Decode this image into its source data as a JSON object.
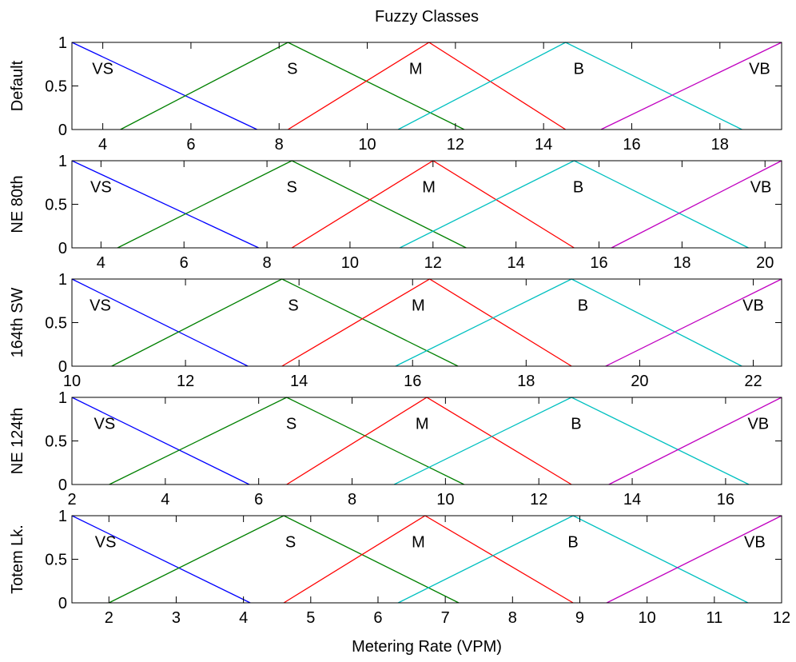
{
  "chart_data": {
    "type": "line",
    "title": "Fuzzy Classes",
    "xlabel": "Metering Rate (VPM)",
    "series_colors": {
      "VS": "#0000ff",
      "S": "#008000",
      "M": "#ff0000",
      "B": "#00c0c0",
      "VB": "#c000c0"
    },
    "panels": [
      {
        "ylabel": "Default",
        "xlim": [
          3.3,
          19.4
        ],
        "ylim": [
          0,
          1
        ],
        "xticks": [
          "4",
          "6",
          "8",
          "10",
          "12",
          "14",
          "16",
          "18"
        ],
        "xtick_values": [
          4,
          6,
          8,
          10,
          12,
          14,
          16,
          18
        ],
        "yticks": [
          "0",
          "0.5",
          "1"
        ],
        "series": [
          {
            "name": "VS",
            "points": [
              [
                3.3,
                1
              ],
              [
                7.5,
                0
              ]
            ]
          },
          {
            "name": "S",
            "points": [
              [
                4.4,
                0
              ],
              [
                8.2,
                1
              ],
              [
                12.2,
                0
              ]
            ]
          },
          {
            "name": "M",
            "points": [
              [
                8.2,
                0
              ],
              [
                11.4,
                1
              ],
              [
                14.5,
                0
              ]
            ]
          },
          {
            "name": "B",
            "points": [
              [
                10.7,
                0
              ],
              [
                14.5,
                1
              ],
              [
                18.5,
                0
              ]
            ]
          },
          {
            "name": "VB",
            "points": [
              [
                15.3,
                0
              ],
              [
                19.4,
                1
              ]
            ]
          }
        ],
        "class_labels": [
          [
            "VS",
            4.0,
            0.7
          ],
          [
            "S",
            8.3,
            0.7
          ],
          [
            "M",
            11.1,
            0.7
          ],
          [
            "B",
            14.8,
            0.7
          ],
          [
            "VB",
            18.9,
            0.7
          ]
        ]
      },
      {
        "ylabel": "NE 80th",
        "xlim": [
          3.3,
          20.4
        ],
        "ylim": [
          0,
          1
        ],
        "xticks": [
          "4",
          "6",
          "8",
          "10",
          "12",
          "14",
          "16",
          "18",
          "20"
        ],
        "xtick_values": [
          4,
          6,
          8,
          10,
          12,
          14,
          16,
          18,
          20
        ],
        "yticks": [
          "0",
          "0.5",
          "1"
        ],
        "series": [
          {
            "name": "VS",
            "points": [
              [
                3.3,
                1
              ],
              [
                7.8,
                0
              ]
            ]
          },
          {
            "name": "S",
            "points": [
              [
                4.4,
                0
              ],
              [
                8.6,
                1
              ],
              [
                12.8,
                0
              ]
            ]
          },
          {
            "name": "M",
            "points": [
              [
                8.6,
                0
              ],
              [
                12.0,
                1
              ],
              [
                15.4,
                0
              ]
            ]
          },
          {
            "name": "B",
            "points": [
              [
                11.2,
                0
              ],
              [
                15.4,
                1
              ],
              [
                19.6,
                0
              ]
            ]
          },
          {
            "name": "VB",
            "points": [
              [
                16.3,
                0
              ],
              [
                20.4,
                1
              ]
            ]
          }
        ],
        "class_labels": [
          [
            "VS",
            4.0,
            0.7
          ],
          [
            "S",
            8.6,
            0.7
          ],
          [
            "M",
            11.9,
            0.7
          ],
          [
            "B",
            15.5,
            0.7
          ],
          [
            "VB",
            19.9,
            0.7
          ]
        ]
      },
      {
        "ylabel": "164th SW",
        "xlim": [
          10,
          22.5
        ],
        "ylim": [
          0,
          1
        ],
        "xticks": [
          "10",
          "12",
          "14",
          "16",
          "18",
          "20",
          "22"
        ],
        "xtick_values": [
          10,
          12,
          14,
          16,
          18,
          20,
          22
        ],
        "yticks": [
          "0",
          "0.5",
          "1"
        ],
        "series": [
          {
            "name": "VS",
            "points": [
              [
                10,
                1
              ],
              [
                13.1,
                0
              ]
            ]
          },
          {
            "name": "S",
            "points": [
              [
                10.7,
                0
              ],
              [
                13.7,
                1
              ],
              [
                16.8,
                0
              ]
            ]
          },
          {
            "name": "M",
            "points": [
              [
                13.7,
                0
              ],
              [
                16.3,
                1
              ],
              [
                18.8,
                0
              ]
            ]
          },
          {
            "name": "B",
            "points": [
              [
                15.7,
                0
              ],
              [
                18.8,
                1
              ],
              [
                21.8,
                0
              ]
            ]
          },
          {
            "name": "VB",
            "points": [
              [
                19.4,
                0
              ],
              [
                22.5,
                1
              ]
            ]
          }
        ],
        "class_labels": [
          [
            "VS",
            10.5,
            0.7
          ],
          [
            "S",
            13.9,
            0.7
          ],
          [
            "M",
            16.1,
            0.7
          ],
          [
            "B",
            19.0,
            0.7
          ],
          [
            "VB",
            22.0,
            0.7
          ]
        ]
      },
      {
        "ylabel": "NE 124th",
        "xlim": [
          2,
          17.2
        ],
        "ylim": [
          0,
          1
        ],
        "xticks": [
          "2",
          "4",
          "6",
          "8",
          "10",
          "12",
          "14",
          "16"
        ],
        "xtick_values": [
          2,
          4,
          6,
          8,
          10,
          12,
          14,
          16
        ],
        "yticks": [
          "0",
          "0.5",
          "1"
        ],
        "series": [
          {
            "name": "VS",
            "points": [
              [
                2,
                1
              ],
              [
                5.8,
                0
              ]
            ]
          },
          {
            "name": "S",
            "points": [
              [
                2.8,
                0
              ],
              [
                6.6,
                1
              ],
              [
                10.4,
                0
              ]
            ]
          },
          {
            "name": "M",
            "points": [
              [
                6.6,
                0
              ],
              [
                9.6,
                1
              ],
              [
                12.7,
                0
              ]
            ]
          },
          {
            "name": "B",
            "points": [
              [
                8.9,
                0
              ],
              [
                12.7,
                1
              ],
              [
                16.5,
                0
              ]
            ]
          },
          {
            "name": "VB",
            "points": [
              [
                13.5,
                0
              ],
              [
                17.2,
                1
              ]
            ]
          }
        ],
        "class_labels": [
          [
            "VS",
            2.7,
            0.7
          ],
          [
            "S",
            6.7,
            0.7
          ],
          [
            "M",
            9.5,
            0.7
          ],
          [
            "B",
            12.8,
            0.7
          ],
          [
            "VB",
            16.7,
            0.7
          ]
        ]
      },
      {
        "ylabel": "Totem Lk.",
        "xlim": [
          1.45,
          12
        ],
        "ylim": [
          0,
          1
        ],
        "xticks": [
          "2",
          "3",
          "4",
          "5",
          "6",
          "7",
          "8",
          "9",
          "10",
          "11",
          "12"
        ],
        "xtick_values": [
          2,
          3,
          4,
          5,
          6,
          7,
          8,
          9,
          10,
          11,
          12
        ],
        "yticks": [
          "0",
          "0.5",
          "1"
        ],
        "series": [
          {
            "name": "VS",
            "points": [
              [
                1.45,
                1
              ],
              [
                4.1,
                0
              ]
            ]
          },
          {
            "name": "S",
            "points": [
              [
                2.0,
                0
              ],
              [
                4.6,
                1
              ],
              [
                7.2,
                0
              ]
            ]
          },
          {
            "name": "M",
            "points": [
              [
                4.6,
                0
              ],
              [
                6.7,
                1
              ],
              [
                8.9,
                0
              ]
            ]
          },
          {
            "name": "B",
            "points": [
              [
                6.3,
                0
              ],
              [
                8.9,
                1
              ],
              [
                11.5,
                0
              ]
            ]
          },
          {
            "name": "VB",
            "points": [
              [
                9.4,
                0
              ],
              [
                12,
                1
              ]
            ]
          }
        ],
        "class_labels": [
          [
            "VS",
            1.95,
            0.7
          ],
          [
            "S",
            4.7,
            0.7
          ],
          [
            "M",
            6.6,
            0.7
          ],
          [
            "B",
            8.9,
            0.7
          ],
          [
            "VB",
            11.6,
            0.7
          ]
        ]
      }
    ]
  }
}
